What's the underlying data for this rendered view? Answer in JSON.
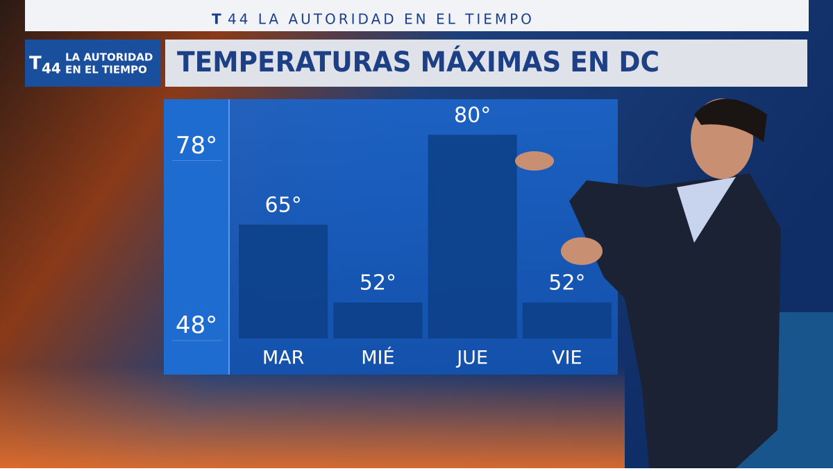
{
  "header": {
    "banner": "44 LA AUTORIDAD EN EL TIEMPO"
  },
  "logo": {
    "number": "44",
    "line1": "LA AUTORIDAD",
    "line2": "EN EL TIEMPO"
  },
  "chart_data": {
    "type": "bar",
    "title": "TEMPERATURAS MÁXIMAS EN DC",
    "categories": [
      "MAR",
      "MIÉ",
      "JUE",
      "VIE"
    ],
    "values": [
      65,
      52,
      80,
      52
    ],
    "value_labels": [
      "65°",
      "52°",
      "80°",
      "52°"
    ],
    "ylim": [
      46,
      82
    ],
    "yticks": [
      {
        "value": 48,
        "label": "48°"
      },
      {
        "value": 78,
        "label": "78°"
      }
    ],
    "color": "#0d3f86"
  }
}
